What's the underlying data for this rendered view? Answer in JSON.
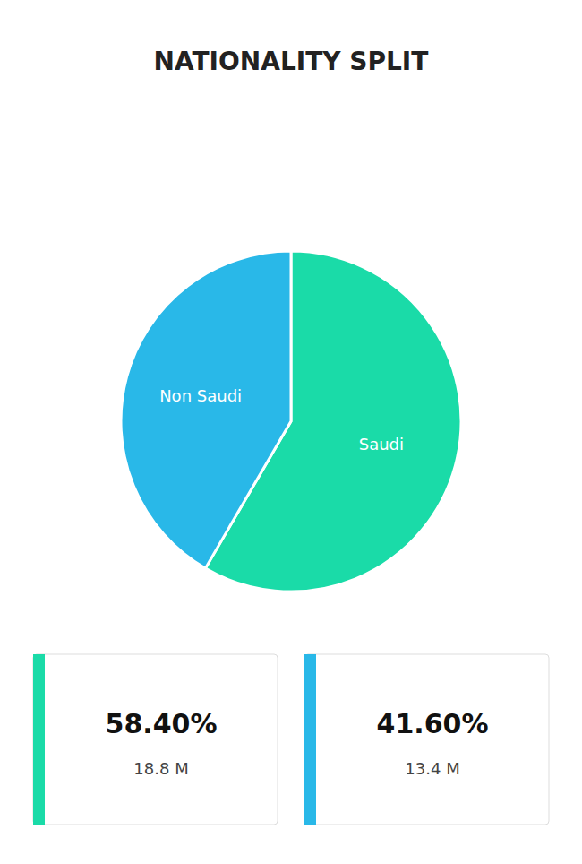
{
  "chart_data": {
    "type": "pie",
    "title": "NATIONALITY SPLIT",
    "categories": [
      "Saudi",
      "Non Saudi"
    ],
    "values": [
      58.4,
      41.6
    ],
    "value_labels": [
      "58.40%",
      "41.60%"
    ],
    "population": [
      18.8,
      13.4
    ],
    "population_labels": [
      "18.8 M",
      "13.4 M"
    ],
    "colors": [
      "#1adba8",
      "#29b8e8"
    ]
  }
}
